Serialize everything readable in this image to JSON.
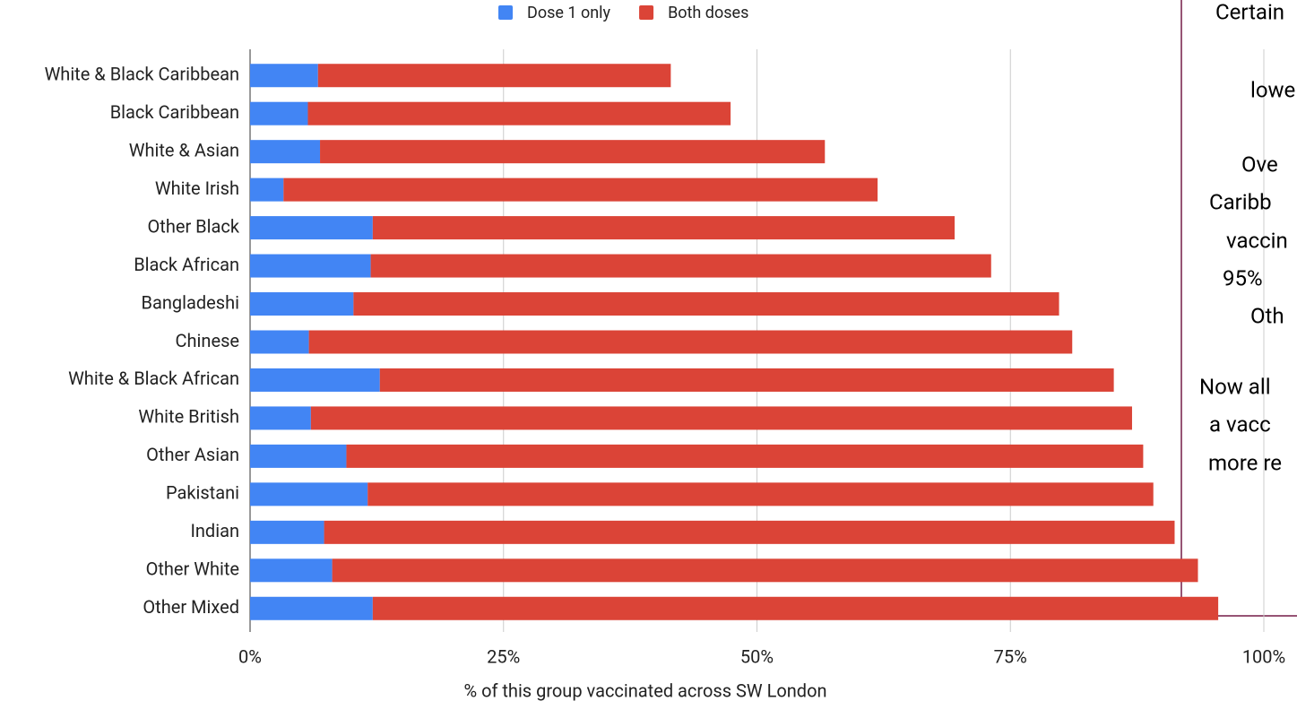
{
  "chart_data": {
    "type": "stacked_barh",
    "legend": "top",
    "xlabel": "% of this group vaccinated across SW London",
    "categories": [
      "White & Black Caribbean",
      "Black Caribbean",
      "White & Asian",
      "White Irish",
      "Other Black",
      "Black African",
      "Bangladeshi",
      "Chinese",
      "White & Black African",
      "White British",
      "Other Asian",
      "Pakistani",
      "Indian",
      "Other White",
      "Other Mixed"
    ],
    "series": [
      {
        "name": "Dose 1 only",
        "color": "#4285f4",
        "values": [
          6.7,
          5.7,
          6.9,
          3.3,
          12.1,
          11.9,
          10.2,
          5.8,
          12.8,
          6.0,
          9.5,
          11.6,
          7.3,
          8.1,
          12.1
        ]
      },
      {
        "name": "Both doses",
        "color": "#db4437",
        "values": [
          34.8,
          41.7,
          49.8,
          58.6,
          57.4,
          61.2,
          69.6,
          75.3,
          72.4,
          81.0,
          78.6,
          77.5,
          83.9,
          85.4,
          83.4
        ]
      }
    ],
    "xlim": [
      0,
      100
    ],
    "xticks": [
      {
        "value": 0,
        "label": "0%"
      },
      {
        "value": 25,
        "label": "25%"
      },
      {
        "value": 50,
        "label": "50%"
      },
      {
        "value": 75,
        "label": "75%"
      },
      {
        "value": 100,
        "label": "100%"
      }
    ],
    "grid": true,
    "annotation_lines": [
      "Certain",
      "lowe",
      "Ove",
      "Caribb",
      "vaccin",
      "95%",
      "Oth",
      "Now all",
      "a vacc",
      "more re"
    ]
  }
}
